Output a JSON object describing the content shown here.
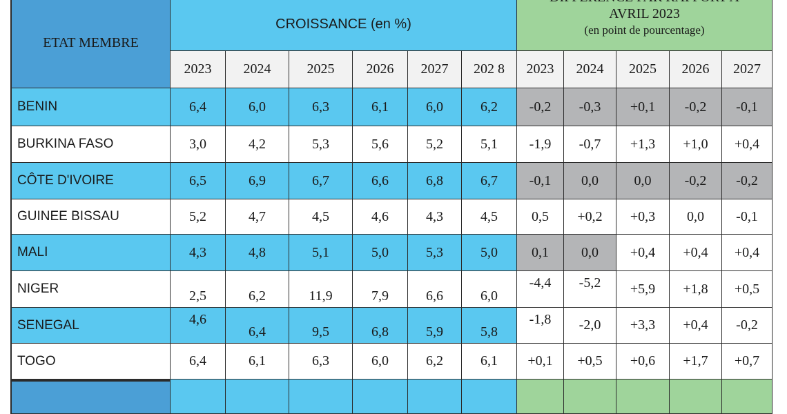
{
  "colors": {
    "blue_header": "#5ac8f0",
    "blue_dark_header": "#4b9fd6",
    "blue_row": "#5ac8f0",
    "green_header": "#9fd49b",
    "gray_cell": "#b4b5b7",
    "year_row_bg": "#f2f2f2",
    "grid": "#2b2b2b"
  },
  "header": {
    "state_label": "ETAT MEMBRE",
    "growth_label": "CROISSANCE (en %)",
    "diff_line1": "DIFFERENCE PAR RAPPORT A",
    "diff_line2": "AVRIL 2023",
    "diff_line3": "(en point de pourcentage)",
    "growth_years": [
      "2023",
      "2024",
      "2025",
      "2026",
      "2027",
      "202 8"
    ],
    "diff_years": [
      "2023",
      "2024",
      "2025",
      "2026",
      "2027"
    ]
  },
  "rows": [
    {
      "country": "BENIN",
      "growth": [
        "6,4",
        "6,0",
        "6,3",
        "6,1",
        "6,0",
        "6,2"
      ],
      "diff": [
        "-0,2",
        "-0,3",
        "+0,1",
        "-0,2",
        "-0,1"
      ]
    },
    {
      "country": "BURKINA FASO",
      "growth": [
        "3,0",
        "4,2",
        "5,3",
        "5,6",
        "5,2",
        "5,1"
      ],
      "diff": [
        "-1,9",
        "-0,7",
        "+1,3",
        "+1,0",
        "+0,4"
      ]
    },
    {
      "country": "CÔTE  D'IVOIRE",
      "growth": [
        "6,5",
        "6,9",
        "6,7",
        "6,6",
        "6,8",
        "6,7"
      ],
      "diff": [
        "-0,1",
        "0,0",
        "0,0",
        "-0,2",
        "-0,2"
      ]
    },
    {
      "country": "GUINEE BISSAU",
      "growth": [
        "5,2",
        "4,7",
        "4,5",
        "4,6",
        "4,3",
        "4,5"
      ],
      "diff": [
        "0,5",
        "+0,2",
        "+0,3",
        "0,0",
        "-0,1"
      ]
    },
    {
      "country": "MALI",
      "growth": [
        "4,3",
        "4,8",
        "5,1",
        "5,0",
        "5,3",
        "5,0"
      ],
      "diff": [
        "0,1",
        "0,0",
        "+0,4",
        "+0,4",
        "+0,4"
      ]
    },
    {
      "country": "NIGER",
      "growth": [
        "2,5",
        "6,2",
        "11,9",
        "7,9",
        "6,6",
        "6,0"
      ],
      "diff": [
        "-4,4",
        "-5,2",
        "+5,9",
        "+1,8",
        "+0,5"
      ]
    },
    {
      "country": "SENEGAL",
      "growth": [
        "4,6",
        "6,4",
        "9,5",
        "6,8",
        "5,9",
        "5,8"
      ],
      "diff": [
        "-1,8",
        "-2,0",
        "+3,3",
        "+0,4",
        "-0,2"
      ]
    },
    {
      "country": "TOGO",
      "growth": [
        "6,4",
        "6,1",
        "6,3",
        "6,0",
        "6,2",
        "6,1"
      ],
      "diff": [
        "+0,1",
        "+0,5",
        "+0,6",
        "+1,7",
        "+0,7"
      ]
    }
  ]
}
